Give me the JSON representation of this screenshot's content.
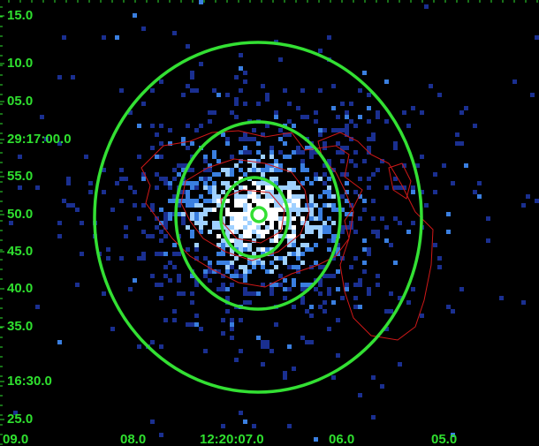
{
  "y_axis_labels": [
    "15.0",
    "10.0",
    "05.0",
    "29:17:00.0",
    "55.0",
    "50.0",
    "45.0",
    "40.0",
    "35.0",
    "16:30.0",
    "25.0"
  ],
  "x_axis_labels": [
    "09.0",
    "08.0",
    "12:20:07.0",
    "06.0",
    "05.0"
  ]
}
